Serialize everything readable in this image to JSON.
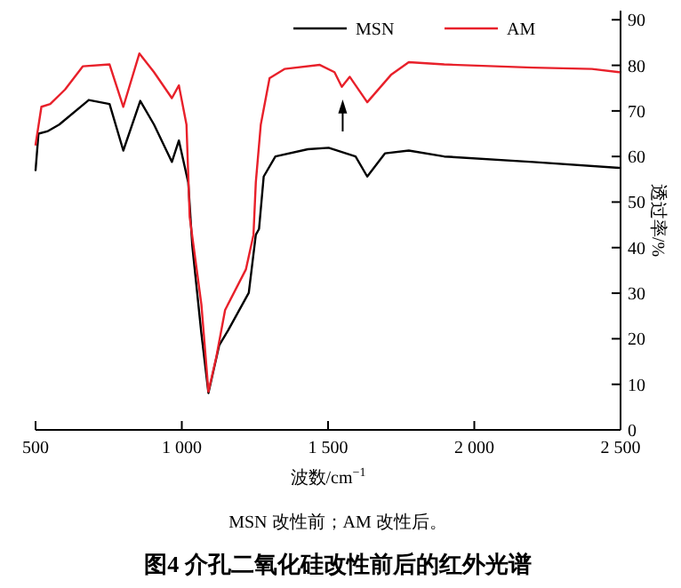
{
  "chart_data": {
    "type": "line",
    "title": "图4 介孔二氧化硅改性前后的红外光谱",
    "xlabel": "波数/cm$^{−1}$",
    "ylabel": "透过率/%",
    "annotations": [
      "MSN 改性前；AM 改性后。"
    ],
    "xlim": [
      500,
      2500
    ],
    "ylim": [
      0,
      92
    ],
    "xticks": [
      500,
      {
        "value": 1000,
        "label": "1 000"
      },
      {
        "value": 1500,
        "label": "1 500"
      },
      {
        "value": 2000,
        "label": "2 000"
      },
      {
        "value": 2500,
        "label": "2 500"
      }
    ],
    "yticks": [
      0,
      10,
      20,
      30,
      40,
      50,
      60,
      70,
      80,
      90
    ],
    "legend": "top",
    "line_style": "solid",
    "series": [
      {
        "name": "MSN",
        "color": "#000000",
        "x": [
          500,
          510,
          540,
          581,
          682,
          753,
          800,
          858,
          905,
          966,
          990,
          1022,
          1036,
          1067,
          1091,
          1128,
          1158,
          1229,
          1253,
          1264,
          1280,
          1320,
          1431,
          1502,
          1594,
          1634,
          1695,
          1776,
          1897,
          2201,
          2495
        ],
        "values": [
          57,
          65,
          65.5,
          67,
          72.4,
          71.5,
          61.3,
          72.2,
          67,
          58.8,
          63.5,
          54.3,
          40.3,
          21.1,
          8.1,
          18.6,
          21.8,
          30.1,
          42.8,
          44.1,
          55.6,
          60,
          61.6,
          61.9,
          60,
          55.6,
          60.7,
          61.3,
          60,
          58.8,
          57.5
        ]
      },
      {
        "name": "AM",
        "color": "#e8202a",
        "x": [
          500,
          520,
          550,
          601,
          662,
          753,
          800,
          855,
          905,
          966,
          990,
          1016,
          1027,
          1067,
          1091,
          1118,
          1148,
          1219,
          1245,
          1253,
          1270,
          1300,
          1351,
          1472,
          1522,
          1547,
          1574,
          1634,
          1715,
          1776,
          1897,
          2201,
          2402,
          2495
        ],
        "values": [
          62.6,
          70.9,
          71.5,
          74.7,
          79.8,
          80.2,
          70.9,
          82.6,
          78.5,
          72.8,
          75.6,
          67,
          46.7,
          27.5,
          8.4,
          16,
          26.3,
          35.2,
          42.8,
          54.3,
          67,
          77.2,
          79.2,
          80.1,
          78.5,
          75.3,
          77.5,
          71.9,
          77.9,
          80.7,
          80.2,
          79.5,
          79.2,
          78.5
        ]
      }
    ]
  }
}
